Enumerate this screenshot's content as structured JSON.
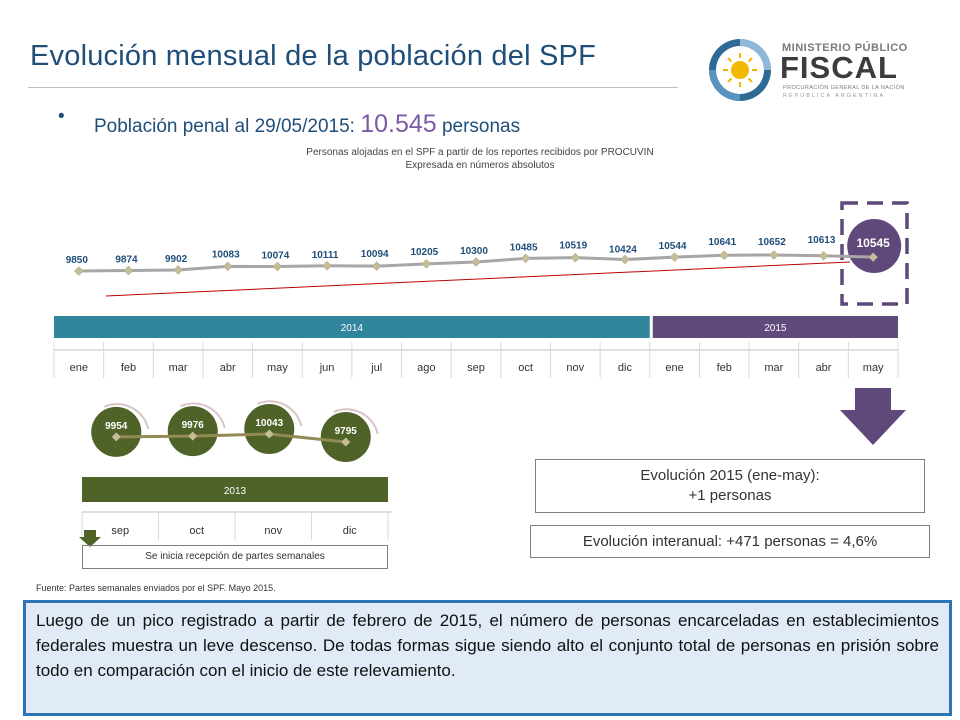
{
  "page": {
    "title": "Evolución mensual de la población del SPF",
    "bullet_prefix": "Población penal al 29/05/2015",
    "bullet_colon": ": ",
    "bullet_value": "10.545",
    "bullet_suffix": " personas",
    "subtitle_line1": "Personas alojadas en el SPF a partir de los reportes recibidos por PROCUVIN",
    "subtitle_line2": "Expresada en números absolutos",
    "note": "Se inicia recepción de partes semanales",
    "source": "Fuente: Partes semanales enviados por el SPF. Mayo 2015.",
    "evolucion_line1": "Evolución 2015 (ene-may):",
    "evolucion_line2": "+1 personas",
    "interanual": "Evolución interanual: +471 personas = 4,6%",
    "paragraph": "Luego de un pico registrado a partir de febrero de 2015, el número de personas encarceladas en establecimientos federales muestra un leve descenso. De todas formas sigue siendo alto el conjunto total de personas en prisión sobre todo en comparación con el inicio de este relevamiento."
  },
  "logo": {
    "ministerio": "MINISTERIO PÚBLICO",
    "fiscal": "FISCAL",
    "procuracion": "PROCURACIÓN GENERAL DE LA NACIÓN",
    "republica": "REPÚBLICA ARGENTINA"
  },
  "colors": {
    "title": "#1f4e79",
    "year_2014": "#31859c",
    "year_2015": "#604a7b",
    "year_2013": "#4f6228",
    "line": "#a6a6a6",
    "marker": "#c4bd97",
    "trend": "#c00000",
    "highlight_circle": "#5f497a",
    "green_circle": "#4f6228",
    "arrow": "#5f497a",
    "panel_border": "#2e75b6",
    "panel_fill": "#e1eaf7"
  },
  "chart_data": [
    {
      "type": "line",
      "categories": [
        "ene",
        "feb",
        "mar",
        "abr",
        "may",
        "jun",
        "jul",
        "ago",
        "sep",
        "oct",
        "nov",
        "dic",
        "ene",
        "feb",
        "mar",
        "abr",
        "may"
      ],
      "groups": [
        {
          "label": "2014",
          "span": [
            0,
            11
          ]
        },
        {
          "label": "2015",
          "span": [
            12,
            16
          ]
        }
      ],
      "values": [
        9850,
        9874,
        9902,
        10083,
        10074,
        10111,
        10094,
        10205,
        10300,
        10485,
        10519,
        10424,
        10544,
        10641,
        10652,
        10613,
        10545
      ],
      "labels": [
        "9850",
        "9874",
        "9902",
        "10083",
        "10074",
        "10111",
        "10094",
        "10205",
        "10300",
        "10485",
        "10519",
        "10424",
        "10544",
        "10641",
        "10652",
        "10613",
        "10545"
      ],
      "highlight_index": 16,
      "trendline": true,
      "grid": false
    },
    {
      "type": "line",
      "categories": [
        "sep",
        "oct",
        "nov",
        "dic"
      ],
      "groups": [
        {
          "label": "2013",
          "span": [
            0,
            3
          ]
        }
      ],
      "values": [
        9954,
        9976,
        10043,
        9795
      ],
      "labels": [
        "9954",
        "9976",
        "10043",
        "9795"
      ],
      "grid": false
    }
  ]
}
